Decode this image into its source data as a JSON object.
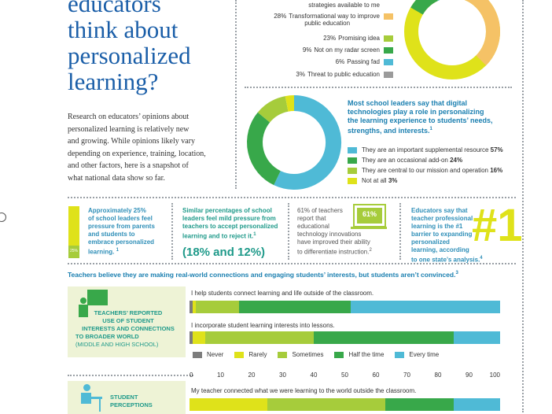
{
  "headline": {
    "lines": [
      "educators",
      "think about",
      "personalized",
      "learning?"
    ]
  },
  "intro": {
    "lines": [
      "Research on educators’ opinions about",
      "personalized learning is relatively new",
      "and growing. While opinions likely vary",
      "depending on experience, training, location,",
      "and other factors, here is a snapshot of",
      "what national data show so far."
    ]
  },
  "colors": {
    "yellow": "#dfe21a",
    "lightgreen": "#a6cc3b",
    "green": "#38a84a",
    "blue": "#4fbad6",
    "orange": "#f5c266",
    "gray": "#9b9b9b",
    "grayfill": "#7d7d7d"
  },
  "donut1": {
    "rows": [
      {
        "pct": "",
        "text": "strategies available to me",
        "color": ""
      },
      {
        "pct": "28%",
        "text": "Transformational way to improve",
        "text2": "public education",
        "color": "#f5c266"
      },
      {
        "pct": "23%",
        "text": "Promising idea",
        "color": "#a6cc3b"
      },
      {
        "pct": "9%",
        "text": "Not on my radar screen",
        "color": "#38a84a"
      },
      {
        "pct": "6%",
        "text": "Passing fad",
        "color": "#4fbad6"
      },
      {
        "pct": "3%",
        "text": "Threat to public education",
        "color": "#9b9b9b"
      }
    ]
  },
  "donut2": {
    "title_lines": [
      "Most school leaders say that digital",
      "technologies play a role in personalizing",
      "the learning experience to students’ needs,",
      "strengths, and interests."
    ],
    "footnote": "1",
    "rows": [
      {
        "text": "They are an important supplemental resource",
        "pct": "57%",
        "color": "#4fbad6"
      },
      {
        "text": "They are an occasional add-on",
        "pct": "24%",
        "color": "#38a84a"
      },
      {
        "text": "They are central to our mission and operation",
        "pct": "16%",
        "color": "#a6cc3b"
      },
      {
        "text": "Not at all",
        "pct": "3%",
        "color": "#dfe21a"
      }
    ]
  },
  "stats": {
    "s1": {
      "lines": [
        "Approximately 25%",
        "of school leaders feel",
        "pressure from parents",
        "and students to",
        "embrace personalized",
        "learning."
      ],
      "note": "1",
      "badge": "25%"
    },
    "s2": {
      "lines": [
        "Similar percentages of school",
        "leaders feel mild pressure from",
        "teachers to accept personalized",
        "learning and to reject it."
      ],
      "note": "1",
      "big": "(18% and 12%)"
    },
    "s3": {
      "lines": [
        "61% of teachers",
        "report that",
        "educational",
        "technology innovations",
        "have improved their ability",
        "to differentiate instruction."
      ],
      "note": "2",
      "screen": "61%"
    },
    "s4": {
      "lines": [
        "Educators say that",
        "teacher professional",
        "learning is the #1",
        "barrier to expanding",
        "personalized",
        "learning, according",
        "to one state’s analysis."
      ],
      "note": "4",
      "big": "#1"
    }
  },
  "section_title": "Teachers believe they are making real-world connections and engaging students’ interests, but students aren’t convinced.",
  "section_note": "3",
  "teacher_panel": {
    "lines": [
      "TEACHERS’ REPORTED",
      "USE OF STUDENT",
      "INTERESTS AND CONNECTIONS",
      "TO BROADER WORLD"
    ],
    "sub": "(MIDDLE AND HIGH SCHOOL)"
  },
  "student_panel": {
    "lines": [
      "STUDENT",
      "PERCEPTIONS"
    ]
  },
  "chart_data": {
    "type": "bar",
    "orientation": "horizontal",
    "stacked": true,
    "categories": [
      "I help students connect learning and life outside of the classroom.",
      "I incorporate student learning interests into lessons.",
      "My teacher connected what we were learning to the world outside the classroom."
    ],
    "series": [
      {
        "name": "Never",
        "color": "#7d7d7d",
        "values": [
          1,
          1,
          0
        ]
      },
      {
        "name": "Rarely",
        "color": "#dfe21a",
        "values": [
          1,
          4,
          25
        ]
      },
      {
        "name": "Sometimes",
        "color": "#a6cc3b",
        "values": [
          14,
          35,
          38
        ]
      },
      {
        "name": "Half the time",
        "color": "#38a84a",
        "values": [
          36,
          45,
          22
        ]
      },
      {
        "name": "Every time",
        "color": "#4fbad6",
        "values": [
          48,
          15,
          15
        ]
      }
    ],
    "xlim": [
      0,
      100
    ],
    "xticks": [
      "0",
      "10",
      "20",
      "30",
      "40",
      "50",
      "60",
      "70",
      "80",
      "90",
      "100"
    ]
  }
}
